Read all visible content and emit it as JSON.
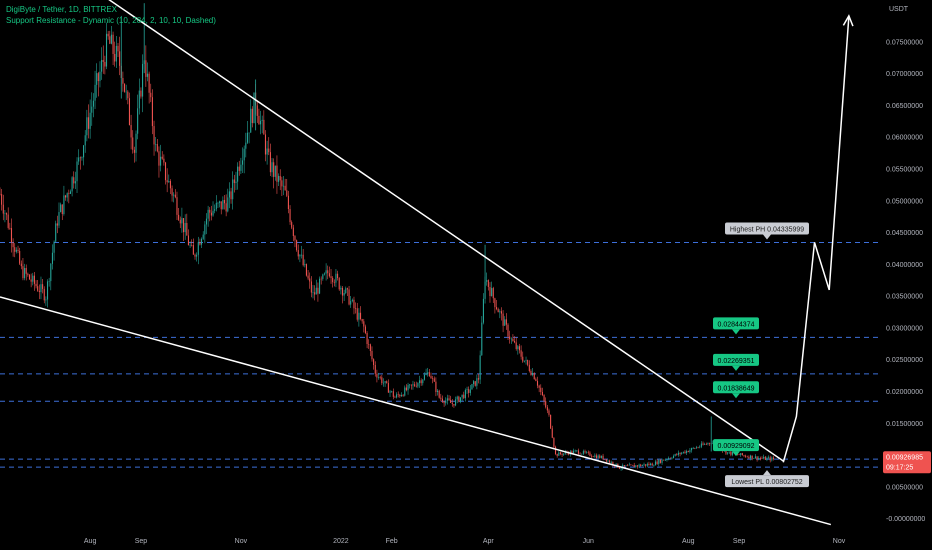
{
  "header": {
    "title": "DigiByte / Tether, 1D, BITTREX",
    "indicator": "Support Resistance - Dynamic (10, 284, 2, 10, 10, Dashed)"
  },
  "chart_data": {
    "type": "candlestick",
    "currency": "USDT",
    "ylim": [
      -0.005,
      0.0815
    ],
    "y_ticks": [
      "0.07500000",
      "0.07000000",
      "0.06500000",
      "0.06000000",
      "0.05500000",
      "0.05000000",
      "0.04500000",
      "0.04000000",
      "0.03500000",
      "0.03000000",
      "0.02500000",
      "0.02000000",
      "0.01500000",
      "0.01000000",
      "0.00500000",
      "-0.00000000"
    ],
    "y_tick_values": [
      0.075,
      0.07,
      0.065,
      0.06,
      0.055,
      0.05,
      0.045,
      0.04,
      0.035,
      0.03,
      0.025,
      0.02,
      0.015,
      0.01,
      0.005,
      0.0
    ],
    "x_ticks": [
      "Aug",
      "Sep",
      "Nov",
      "2022",
      "Feb",
      "Apr",
      "Jun",
      "Aug",
      "Sep",
      "Nov"
    ],
    "x_tick_dates": [
      "2021-08-01",
      "2021-09-01",
      "2021-11-01",
      "2022-01-01",
      "2022-02-01",
      "2022-04-01",
      "2022-06-01",
      "2022-08-01",
      "2022-09-01",
      "2022-11-01"
    ],
    "x_range": [
      "2021-06-07",
      "2022-11-26"
    ],
    "price_path": [
      [
        "2021-06-07",
        0.051
      ],
      [
        "2021-06-20",
        0.039
      ],
      [
        "2021-07-05",
        0.035
      ],
      [
        "2021-07-12",
        0.047
      ],
      [
        "2021-07-25",
        0.056
      ],
      [
        "2021-08-03",
        0.066
      ],
      [
        "2021-08-12",
        0.075
      ],
      [
        "2021-08-20",
        0.071
      ],
      [
        "2021-08-28",
        0.058
      ],
      [
        "2021-09-03",
        0.073
      ],
      [
        "2021-09-10",
        0.058
      ],
      [
        "2021-09-22",
        0.05
      ],
      [
        "2021-10-03",
        0.041
      ],
      [
        "2021-10-12",
        0.048
      ],
      [
        "2021-10-25",
        0.05
      ],
      [
        "2021-11-03",
        0.059
      ],
      [
        "2021-11-10",
        0.066
      ],
      [
        "2021-11-18",
        0.056
      ],
      [
        "2021-11-28",
        0.051
      ],
      [
        "2021-12-05",
        0.043
      ],
      [
        "2021-12-15",
        0.035
      ],
      [
        "2021-12-25",
        0.039
      ],
      [
        "2022-01-05",
        0.035
      ],
      [
        "2022-01-15",
        0.03
      ],
      [
        "2022-01-22",
        0.023
      ],
      [
        "2022-02-03",
        0.019
      ],
      [
        "2022-02-15",
        0.021
      ],
      [
        "2022-02-24",
        0.023
      ],
      [
        "2022-03-02",
        0.019
      ],
      [
        "2022-03-10",
        0.018
      ],
      [
        "2022-03-20",
        0.02
      ],
      [
        "2022-03-26",
        0.022
      ],
      [
        "2022-03-30",
        0.038
      ],
      [
        "2022-04-05",
        0.034
      ],
      [
        "2022-04-15",
        0.028
      ],
      [
        "2022-04-30",
        0.022
      ],
      [
        "2022-05-08",
        0.016
      ],
      [
        "2022-05-12",
        0.01
      ],
      [
        "2022-05-25",
        0.0105
      ],
      [
        "2022-06-10",
        0.0095
      ],
      [
        "2022-06-20",
        0.008
      ],
      [
        "2022-07-10",
        0.0085
      ],
      [
        "2022-07-25",
        0.01
      ],
      [
        "2022-08-10",
        0.0115
      ],
      [
        "2022-08-15",
        0.012
      ],
      [
        "2022-08-25",
        0.0103
      ],
      [
        "2022-09-05",
        0.0098
      ],
      [
        "2022-09-15",
        0.0094
      ],
      [
        "2022-09-22",
        0.0093
      ]
    ],
    "wicks": [
      {
        "date": "2021-08-20",
        "high": 0.079,
        "low": 0.066
      },
      {
        "date": "2021-09-03",
        "high": 0.081,
        "low": 0.07
      },
      {
        "date": "2021-11-10",
        "high": 0.069,
        "low": 0.061
      },
      {
        "date": "2022-03-30",
        "high": 0.043,
        "low": 0.036
      },
      {
        "date": "2022-08-15",
        "high": 0.016,
        "low": 0.0105
      }
    ],
    "resistance_lines": [
      0.04335999,
      0.02844374,
      0.02269351,
      0.01838649,
      0.00929092,
      0.00802752
    ],
    "trendlines": [
      {
        "from": [
          "2021-08-10",
          0.082
        ],
        "to": [
          "2022-09-28",
          0.009
        ]
      },
      {
        "from": [
          "2021-06-07",
          0.0348
        ],
        "to": [
          "2022-10-27",
          -0.001
        ]
      }
    ],
    "projection": [
      [
        "2022-09-28",
        0.0088
      ],
      [
        "2022-10-06",
        0.016
      ],
      [
        "2022-10-17",
        0.04338
      ],
      [
        "2022-10-26",
        0.0359
      ],
      [
        "2022-11-07",
        0.079
      ]
    ],
    "labels": [
      {
        "text": "Highest PH 0.04335999",
        "value": 0.04335999,
        "style": "gray",
        "pointer": "down"
      },
      {
        "text": "0.02844374",
        "value": 0.02844374,
        "style": "green",
        "pointer": "down"
      },
      {
        "text": "0.02269351",
        "value": 0.02269351,
        "style": "green",
        "pointer": "down"
      },
      {
        "text": "0.01838649",
        "value": 0.01838649,
        "style": "green",
        "pointer": "down"
      },
      {
        "text": "0.00929092",
        "value": 0.00929092,
        "style": "green",
        "pointer": "down"
      },
      {
        "text": "Lowest PL 0.00802752",
        "value": 0.00802752,
        "style": "gray",
        "pointer": "up"
      }
    ],
    "last_price": {
      "value": 0.00926985,
      "text": "0.00926985",
      "countdown": "09:17:25"
    },
    "colors": {
      "up": "#26a69a",
      "down": "#ef5350",
      "level": "#3d6fd9",
      "label_green": "#16c784",
      "label_gray": "#c9ccd3",
      "last": "#ef5350",
      "trend": "#ffffff"
    }
  }
}
